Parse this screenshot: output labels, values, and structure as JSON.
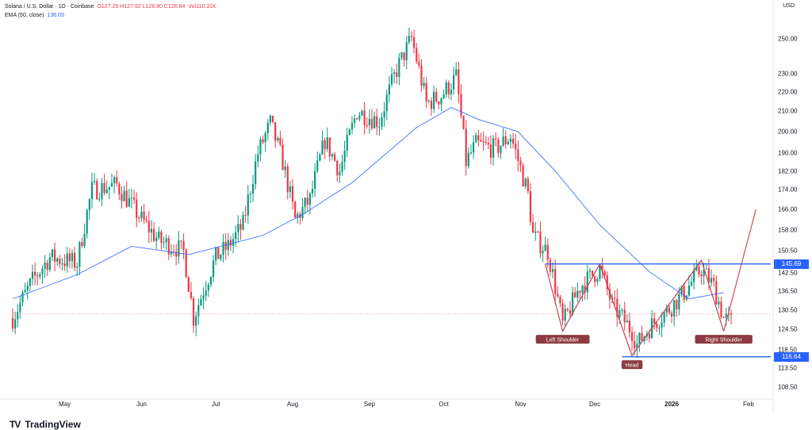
{
  "legend": {
    "symbol": "Solana / U.S. Dollar · 1D · Coinbase",
    "ohlc": "O127.29  H127.92  L126.80  C126.84",
    "volume": "Vol110.31K",
    "ema_label": "EMA (50, close)",
    "ema_value": "136.05"
  },
  "currency": "USD",
  "brand": {
    "name": "TradingView",
    "mark": "TV"
  },
  "colors": {
    "up": "#089981",
    "down": "#f23645",
    "ema": "#2962ff",
    "level": "#2962ff",
    "pattern": "#c2444f",
    "projection": "#d44b55"
  },
  "y_ticks": [
    "250.00",
    "230.00",
    "220.00",
    "210.00",
    "200.00",
    "190.00",
    "182.00",
    "174.00",
    "166.00",
    "158.00",
    "150.50",
    "142.50",
    "136.50",
    "130.50",
    "124.50",
    "118.50",
    "113.50",
    "108.50"
  ],
  "x_ticks": [
    {
      "label": "May",
      "bold": false
    },
    {
      "label": "Jun",
      "bold": false
    },
    {
      "label": "Jul",
      "bold": false
    },
    {
      "label": "Aug",
      "bold": false
    },
    {
      "label": "Sep",
      "bold": false
    },
    {
      "label": "Oct",
      "bold": false
    },
    {
      "label": "Nov",
      "bold": false
    },
    {
      "label": "Dec",
      "bold": false
    },
    {
      "label": "2026",
      "bold": true
    },
    {
      "label": "Feb",
      "bold": false
    }
  ],
  "chart_data": {
    "type": "candlestick",
    "series_overlay": "EMA (50, close)",
    "x_range": [
      "2025-04-10",
      "2026-02-10"
    ],
    "y_scale": "log",
    "ylim": [
      106,
      264
    ],
    "close_path": [
      [
        "2025-04-10",
        128
      ],
      [
        "2025-04-18",
        140
      ],
      [
        "2025-04-25",
        148
      ],
      [
        "2025-05-06",
        146
      ],
      [
        "2025-05-12",
        174
      ],
      [
        "2025-05-22",
        176
      ],
      [
        "2025-06-01",
        162
      ],
      [
        "2025-06-08",
        154
      ],
      [
        "2025-06-14",
        152
      ],
      [
        "2025-06-18",
        150
      ],
      [
        "2025-06-22",
        128
      ],
      [
        "2025-07-01",
        148
      ],
      [
        "2025-07-06",
        152
      ],
      [
        "2025-07-12",
        160
      ],
      [
        "2025-07-18",
        190
      ],
      [
        "2025-07-23",
        204
      ],
      [
        "2025-07-28",
        186
      ],
      [
        "2025-08-02",
        162
      ],
      [
        "2025-08-08",
        170
      ],
      [
        "2025-08-14",
        196
      ],
      [
        "2025-08-20",
        182
      ],
      [
        "2025-08-27",
        210
      ],
      [
        "2025-09-05",
        205
      ],
      [
        "2025-09-12",
        232
      ],
      [
        "2025-09-18",
        250
      ],
      [
        "2025-09-24",
        214
      ],
      [
        "2025-09-30",
        218
      ],
      [
        "2025-10-06",
        228
      ],
      [
        "2025-10-10",
        186
      ],
      [
        "2025-10-14",
        194
      ],
      [
        "2025-10-22",
        192
      ],
      [
        "2025-10-28",
        198
      ],
      [
        "2025-11-04",
        172
      ],
      [
        "2025-11-06",
        156
      ],
      [
        "2025-11-12",
        150
      ],
      [
        "2025-11-18",
        126
      ],
      [
        "2025-11-25",
        138
      ],
      [
        "2025-12-03",
        144
      ],
      [
        "2025-12-08",
        132
      ],
      [
        "2025-12-16",
        124
      ],
      [
        "2025-12-18",
        120
      ],
      [
        "2025-12-24",
        126
      ],
      [
        "2025-12-30",
        130
      ],
      [
        "2026-01-06",
        136
      ],
      [
        "2026-01-13",
        144
      ],
      [
        "2026-01-18",
        138
      ],
      [
        "2026-01-22",
        128
      ],
      [
        "2026-01-25",
        126.84
      ]
    ],
    "ema_50": [
      [
        "2025-04-10",
        134
      ],
      [
        "2025-05-06",
        142
      ],
      [
        "2025-05-28",
        152
      ],
      [
        "2025-06-20",
        149
      ],
      [
        "2025-07-20",
        156
      ],
      [
        "2025-08-05",
        164
      ],
      [
        "2025-08-25",
        177
      ],
      [
        "2025-09-20",
        202
      ],
      [
        "2025-10-04",
        212
      ],
      [
        "2025-10-15",
        206
      ],
      [
        "2025-10-31",
        200
      ],
      [
        "2025-11-15",
        182
      ],
      [
        "2025-12-03",
        160
      ],
      [
        "2025-12-23",
        143
      ],
      [
        "2026-01-08",
        134
      ],
      [
        "2026-01-22",
        136
      ]
    ],
    "levels": [
      {
        "label": "145.69",
        "value": 145.69
      },
      {
        "label": "116.64",
        "value": 116.64
      }
    ],
    "dotted_level": 129.2,
    "annotations": [
      {
        "text": "Left Shoulder",
        "x": "2025-11-18",
        "y": 123.5
      },
      {
        "text": "Head",
        "x": "2025-12-16",
        "y": 116.64
      },
      {
        "text": "Right Shoulder",
        "x": "2026-01-22",
        "y": 123.5
      }
    ],
    "pattern_points": [
      [
        "2025-11-11",
        145.69
      ],
      [
        "2025-11-18",
        124
      ],
      [
        "2025-12-03",
        145.69
      ],
      [
        "2025-12-16",
        117
      ],
      [
        "2026-01-13",
        147
      ],
      [
        "2026-01-22",
        124
      ]
    ],
    "projection": [
      [
        "2026-01-22",
        124
      ],
      [
        "2026-02-04",
        166
      ]
    ]
  }
}
